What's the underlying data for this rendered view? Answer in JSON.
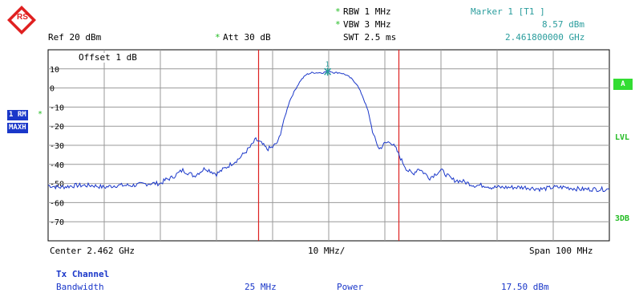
{
  "logo": {
    "text": "RS",
    "color": "#e02020"
  },
  "header": {
    "rbw": "RBW 1 MHz",
    "vbw": "VBW 3 MHz",
    "swt": "SWT 2.5 ms",
    "ref": "Ref  20 dBm",
    "att": "Att  30 dB",
    "star": "*",
    "marker_title": "Marker 1 [T1 ]",
    "marker_level": "8.57 dBm",
    "marker_freq": "2.461800000 GHz"
  },
  "side": {
    "trace_badge": "1 RM",
    "detector_badge": "MAXH",
    "trace_star": "*",
    "a_badge": "A",
    "lvl": "LVL",
    "db3": "3DB"
  },
  "plot": {
    "offset_label": "Offset  1 dB",
    "center_label": "Center 2.462 GHz",
    "div_label": "10 MHz/",
    "span_label": "Span 100 MHz",
    "y_ticks": [
      "10",
      "0",
      "-10",
      "-20",
      "-30",
      "-40",
      "-50",
      "-60",
      "-70"
    ]
  },
  "chart_data": {
    "type": "line",
    "xlabel": "",
    "ylabel": "",
    "x_unit": "MHz offset from center",
    "xlim": [
      -50,
      50
    ],
    "ylim": [
      -80,
      20
    ],
    "grid": true,
    "series": [
      {
        "color": "#1a37c9",
        "x": [
          -50,
          -48,
          -45,
          -42,
          -40,
          -38,
          -35,
          -32,
          -30,
          -29,
          -28,
          -26,
          -24,
          -22,
          -20,
          -18,
          -16,
          -14,
          -13,
          -12,
          -11,
          -10,
          -9,
          -8,
          -7,
          -6,
          -5,
          -4,
          -3,
          -2,
          -1,
          0,
          1,
          2,
          3,
          4,
          5,
          6,
          7,
          8,
          9,
          10,
          11,
          12,
          13,
          14,
          15,
          16,
          18,
          20,
          22,
          24,
          26,
          28,
          29,
          30,
          32,
          35,
          38,
          40,
          42,
          45,
          48,
          50
        ],
        "y": [
          -51,
          -52,
          -51,
          -51,
          -52,
          -51,
          -51,
          -50,
          -50,
          -48,
          -47,
          -43,
          -46,
          -42,
          -45,
          -41,
          -37,
          -31,
          -27,
          -29,
          -32,
          -31,
          -28,
          -17,
          -7,
          -1,
          4,
          7,
          8,
          8,
          8,
          9,
          8,
          8,
          7,
          5,
          2,
          -4,
          -12,
          -25,
          -32,
          -29,
          -28,
          -32,
          -38,
          -43,
          -45,
          -42,
          -47,
          -43,
          -48,
          -49,
          -51,
          -51,
          -52,
          -52,
          -52,
          -52,
          -53,
          -52,
          -52,
          -53,
          -53,
          -53
        ]
      }
    ],
    "display_line_db": -50,
    "marker": {
      "x": -0.2,
      "y": 8.57,
      "label": "1"
    },
    "vertical_lines_mhz": [
      -12.5,
      12.5
    ],
    "vertical_line_color": "#dd2222"
  },
  "table": {
    "title": "Tx Channel",
    "bandwidth_label": "Bandwidth",
    "bandwidth_value": "25 MHz",
    "power_label": "Power",
    "power_value": "17.50 dBm"
  }
}
